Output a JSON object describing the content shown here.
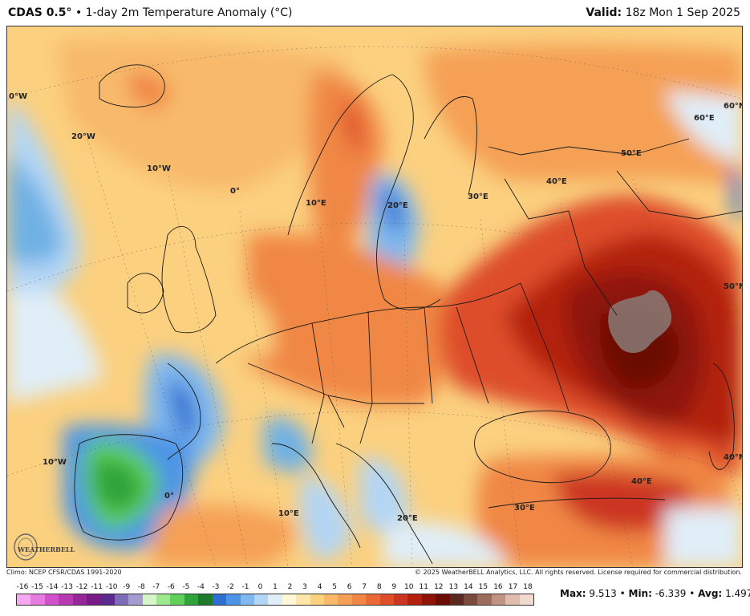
{
  "header": {
    "product": "CDAS 0.5",
    "degree_sign": "°",
    "bullet": "•",
    "description": "1-day 2m Temperature Anomaly (°C)",
    "valid_label": "Valid:",
    "valid_time": "18z Mon 1 Sep 2025"
  },
  "map": {
    "region": "Europe",
    "lon_labels": [
      "0°W",
      "20°W",
      "10°W",
      "0°",
      "10°E",
      "20°E",
      "30°E",
      "40°E",
      "50°E",
      "60°E",
      "60°N",
      "50°N",
      "40°N",
      "40°E",
      "10°W",
      "0°",
      "10°E",
      "20°E",
      "30°E"
    ],
    "colors": {
      "warm_light": "#fde6a8",
      "warm_mid": "#f7a35c",
      "warm_strong": "#e4572e",
      "hot": "#b3200f",
      "hottest": "#7a0d06",
      "cool_light": "#d6ecf7",
      "cool_mid": "#6fb1e4",
      "cool_strong": "#2063c9",
      "green": "#3fbf3a",
      "green_dark": "#138a22",
      "grey_patch": "#8a7a76",
      "border": "#1a1a1a"
    }
  },
  "footer": {
    "climo": "Climo: NCEP CFSR/CDAS 1991-2020",
    "copyright": "© 2025 WeatherBELL Analytics, LLC. All rights reserved. License required for commercial distribution."
  },
  "logo": {
    "text": "WEATHERBELL",
    "icon": "weatherbell-logo-icon"
  },
  "colorbar": {
    "ticks": [
      "-16",
      "-15",
      "-14",
      "-13",
      "-12",
      "-11",
      "-10",
      "-9",
      "-8",
      "-7",
      "-6",
      "-5",
      "-4",
      "-3",
      "-2",
      "-1",
      "0",
      "1",
      "2",
      "3",
      "4",
      "5",
      "6",
      "7",
      "8",
      "9",
      "10",
      "11",
      "12",
      "13",
      "14",
      "15",
      "16",
      "17",
      "18"
    ],
    "colors": [
      "#f7a6f0",
      "#e77be0",
      "#d151cc",
      "#b73ab3",
      "#95279a",
      "#7a1a86",
      "#5c2a8f",
      "#7d6bb8",
      "#a49bd1",
      "#d6f5c8",
      "#9ee88e",
      "#5fd15a",
      "#2fa43a",
      "#1f7a2c",
      "#2f6fd1",
      "#4e94e6",
      "#7fb8ef",
      "#b3d6f5",
      "#e0eef8",
      "#fff7d6",
      "#fde6a8",
      "#fbd07f",
      "#f8b96a",
      "#f5a055",
      "#f08745",
      "#e96a36",
      "#de4e29",
      "#cc3520",
      "#b3200f",
      "#8f1408",
      "#6b0c05",
      "#5a2a22",
      "#7a4a3c",
      "#9c6c5c",
      "#bf9282",
      "#e0bcae",
      "#f2d9cf"
    ]
  },
  "stats": {
    "max_label": "Max:",
    "max_value": "9.513",
    "min_label": "Min:",
    "min_value": "-6.339",
    "avg_label": "Avg:",
    "avg_value": "1.497",
    "sep": "•"
  }
}
